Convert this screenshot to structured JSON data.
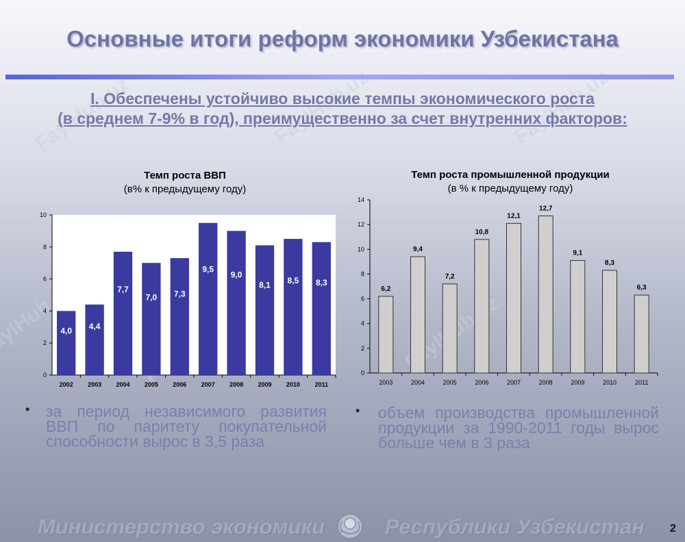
{
  "header": {
    "title": "Основные итоги реформ экономики Узбекистана",
    "subtitle_line1": "I. Обеспечены устойчиво высокие темпы экономического роста",
    "subtitle_line2": "(в среднем 7-9% в год), преимущественно за счет внутренних факторов:"
  },
  "chart_data": [
    {
      "type": "bar",
      "title": "Темп роста ВВП",
      "subtitle": "(в% к предыдущему году)",
      "categories": [
        "2002",
        "2003",
        "2004",
        "2005",
        "2006",
        "2007",
        "2008",
        "2009",
        "2010",
        "2011"
      ],
      "values": [
        4.0,
        4.4,
        7.7,
        7.0,
        7.3,
        9.5,
        9.0,
        8.1,
        8.5,
        8.3
      ],
      "labels": [
        "4,0",
        "4,4",
        "7,7",
        "7,0",
        "7,3",
        "9,5",
        "9,0",
        "8,1",
        "8,5",
        "8,3"
      ],
      "ylim": [
        0,
        10
      ],
      "yticks": [
        0,
        2,
        4,
        6,
        8,
        10
      ],
      "bar_color": "#3a3aa0",
      "label_color": "#ffffff",
      "grid": false
    },
    {
      "type": "bar",
      "title": "Темп роста промышленной продукции",
      "subtitle": "(в % к предыдущему году)",
      "categories": [
        "2003",
        "2004",
        "2005",
        "2006",
        "2007",
        "2008",
        "2009",
        "2010",
        "2011"
      ],
      "values": [
        6.2,
        9.4,
        7.2,
        10.8,
        12.1,
        12.7,
        9.1,
        8.3,
        6.3
      ],
      "labels": [
        "6,2",
        "9,4",
        "7,2",
        "10,8",
        "12,1",
        "12,7",
        "9,1",
        "8,3",
        "6,3"
      ],
      "ylim": [
        0,
        14
      ],
      "yticks": [
        0,
        2,
        4,
        6,
        8,
        10,
        12,
        14
      ],
      "bar_color": "#cfcfcf",
      "label_color": "#000000",
      "grid": false
    }
  ],
  "bullets": {
    "left": "за период независимого развития ВВП по паритету покупательной способности вырос в 3,5 раза",
    "right": "объем производства промышленной продукции за 1990-2011 годы вырос больше чем в 3 раза",
    "marker": "•"
  },
  "footer": {
    "left_text": "Министерство экономики",
    "right_text": "Республики Узбекистан",
    "page_number": "2"
  },
  "watermark": "FaylHub.uz"
}
